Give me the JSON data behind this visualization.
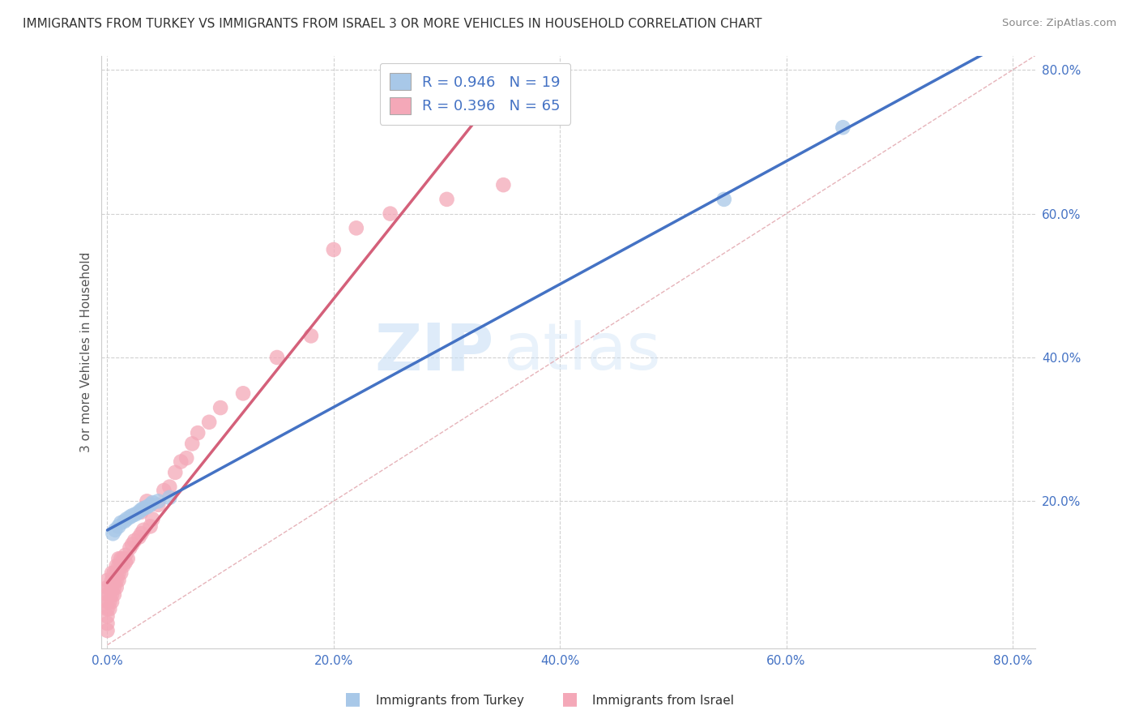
{
  "title": "IMMIGRANTS FROM TURKEY VS IMMIGRANTS FROM ISRAEL 3 OR MORE VEHICLES IN HOUSEHOLD CORRELATION CHART",
  "source": "Source: ZipAtlas.com",
  "ylabel": "3 or more Vehicles in Household",
  "xlim": [
    -0.005,
    0.82
  ],
  "ylim": [
    -0.005,
    0.82
  ],
  "xtick_labels": [
    "0.0%",
    "20.0%",
    "40.0%",
    "60.0%",
    "80.0%"
  ],
  "ytick_labels": [
    "20.0%",
    "40.0%",
    "60.0%",
    "80.0%"
  ],
  "xtick_vals": [
    0.0,
    0.2,
    0.4,
    0.6,
    0.8
  ],
  "ytick_vals": [
    0.2,
    0.4,
    0.6,
    0.8
  ],
  "turkey_color": "#a8c8e8",
  "israel_color": "#f4a8b8",
  "turkey_line_color": "#4472c4",
  "israel_line_color": "#d4607a",
  "diag_color": "#e8a0a8",
  "turkey_R": 0.946,
  "turkey_N": 19,
  "israel_R": 0.396,
  "israel_N": 65,
  "legend_label_turkey": "Immigrants from Turkey",
  "legend_label_israel": "Immigrants from Israel",
  "watermark_zip": "ZIP",
  "watermark_atlas": "atlas",
  "background_color": "#ffffff",
  "grid_color": "#cccccc",
  "turkey_scatter_x": [
    0.005,
    0.007,
    0.01,
    0.012,
    0.015,
    0.017,
    0.02,
    0.022,
    0.025,
    0.028,
    0.03,
    0.032,
    0.035,
    0.038,
    0.04,
    0.045,
    0.055,
    0.545,
    0.65
  ],
  "turkey_scatter_y": [
    0.155,
    0.16,
    0.165,
    0.17,
    0.172,
    0.175,
    0.178,
    0.18,
    0.182,
    0.185,
    0.188,
    0.19,
    0.192,
    0.195,
    0.198,
    0.2,
    0.205,
    0.62,
    0.72
  ],
  "israel_scatter_x": [
    0.0,
    0.0,
    0.0,
    0.0,
    0.0,
    0.0,
    0.0,
    0.0,
    0.002,
    0.002,
    0.002,
    0.002,
    0.004,
    0.004,
    0.004,
    0.004,
    0.004,
    0.006,
    0.006,
    0.006,
    0.006,
    0.008,
    0.008,
    0.008,
    0.008,
    0.01,
    0.01,
    0.01,
    0.01,
    0.012,
    0.012,
    0.012,
    0.014,
    0.014,
    0.016,
    0.016,
    0.018,
    0.02,
    0.022,
    0.024,
    0.028,
    0.03,
    0.03,
    0.032,
    0.035,
    0.038,
    0.04,
    0.045,
    0.05,
    0.055,
    0.06,
    0.065,
    0.07,
    0.075,
    0.08,
    0.09,
    0.1,
    0.12,
    0.15,
    0.18,
    0.2,
    0.22,
    0.25,
    0.3,
    0.35
  ],
  "israel_scatter_y": [
    0.02,
    0.03,
    0.04,
    0.05,
    0.06,
    0.07,
    0.08,
    0.09,
    0.05,
    0.06,
    0.07,
    0.08,
    0.06,
    0.07,
    0.08,
    0.09,
    0.1,
    0.07,
    0.08,
    0.09,
    0.1,
    0.08,
    0.09,
    0.1,
    0.11,
    0.09,
    0.1,
    0.11,
    0.12,
    0.1,
    0.11,
    0.12,
    0.11,
    0.12,
    0.115,
    0.125,
    0.12,
    0.135,
    0.14,
    0.145,
    0.15,
    0.155,
    0.185,
    0.16,
    0.2,
    0.165,
    0.175,
    0.195,
    0.215,
    0.22,
    0.24,
    0.255,
    0.26,
    0.28,
    0.295,
    0.31,
    0.33,
    0.35,
    0.4,
    0.43,
    0.55,
    0.58,
    0.6,
    0.62,
    0.64
  ]
}
